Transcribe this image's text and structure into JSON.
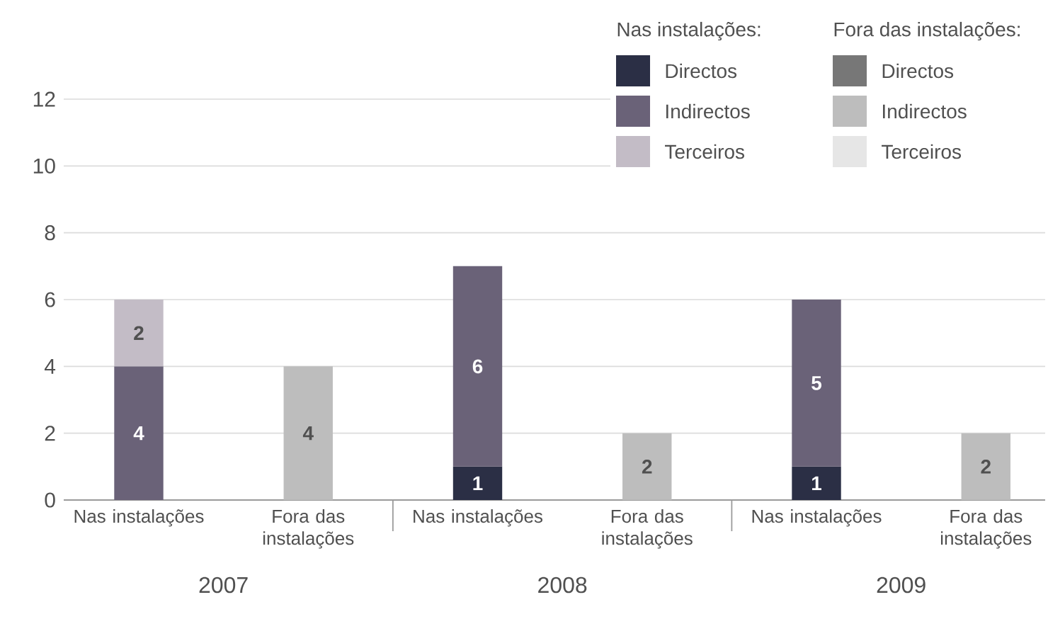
{
  "chart_data": {
    "type": "bar",
    "stacked": true,
    "categories": [
      "Nas instalações",
      "Fora das instalações",
      "Nas instalações",
      "Fora das instalações",
      "Nas instalações",
      "Fora das instalações"
    ],
    "series": [
      {
        "name": "Directos",
        "color": "#2b2f45",
        "values": [
          null,
          null,
          1,
          null,
          1,
          null
        ]
      },
      {
        "name": "Indirectos",
        "color": "#6a6278",
        "values": [
          4,
          null,
          6,
          null,
          5,
          null
        ]
      },
      {
        "name": "Terceiros",
        "color": "#c3bcc6",
        "values": [
          2,
          null,
          null,
          null,
          null,
          null
        ]
      },
      {
        "name": "Directos",
        "color": "#777777",
        "values": [
          null,
          null,
          null,
          null,
          null,
          null
        ]
      },
      {
        "name": "Indirectos",
        "color": "#bdbdbd",
        "values": [
          null,
          4,
          null,
          2,
          null,
          2
        ]
      },
      {
        "name": "Terceiros",
        "color": "#e6e6e6",
        "values": [
          null,
          null,
          null,
          null,
          null,
          null
        ]
      }
    ],
    "ylim": [
      0,
      12
    ],
    "yticks": [
      0,
      2,
      4,
      6,
      8,
      10,
      12
    ],
    "grid": "y",
    "legend": "top right",
    "data_labels": true,
    "annotations": [
      "Nas instalações:",
      "Fora das instalações:",
      "2007",
      "2008",
      "2009"
    ]
  }
}
